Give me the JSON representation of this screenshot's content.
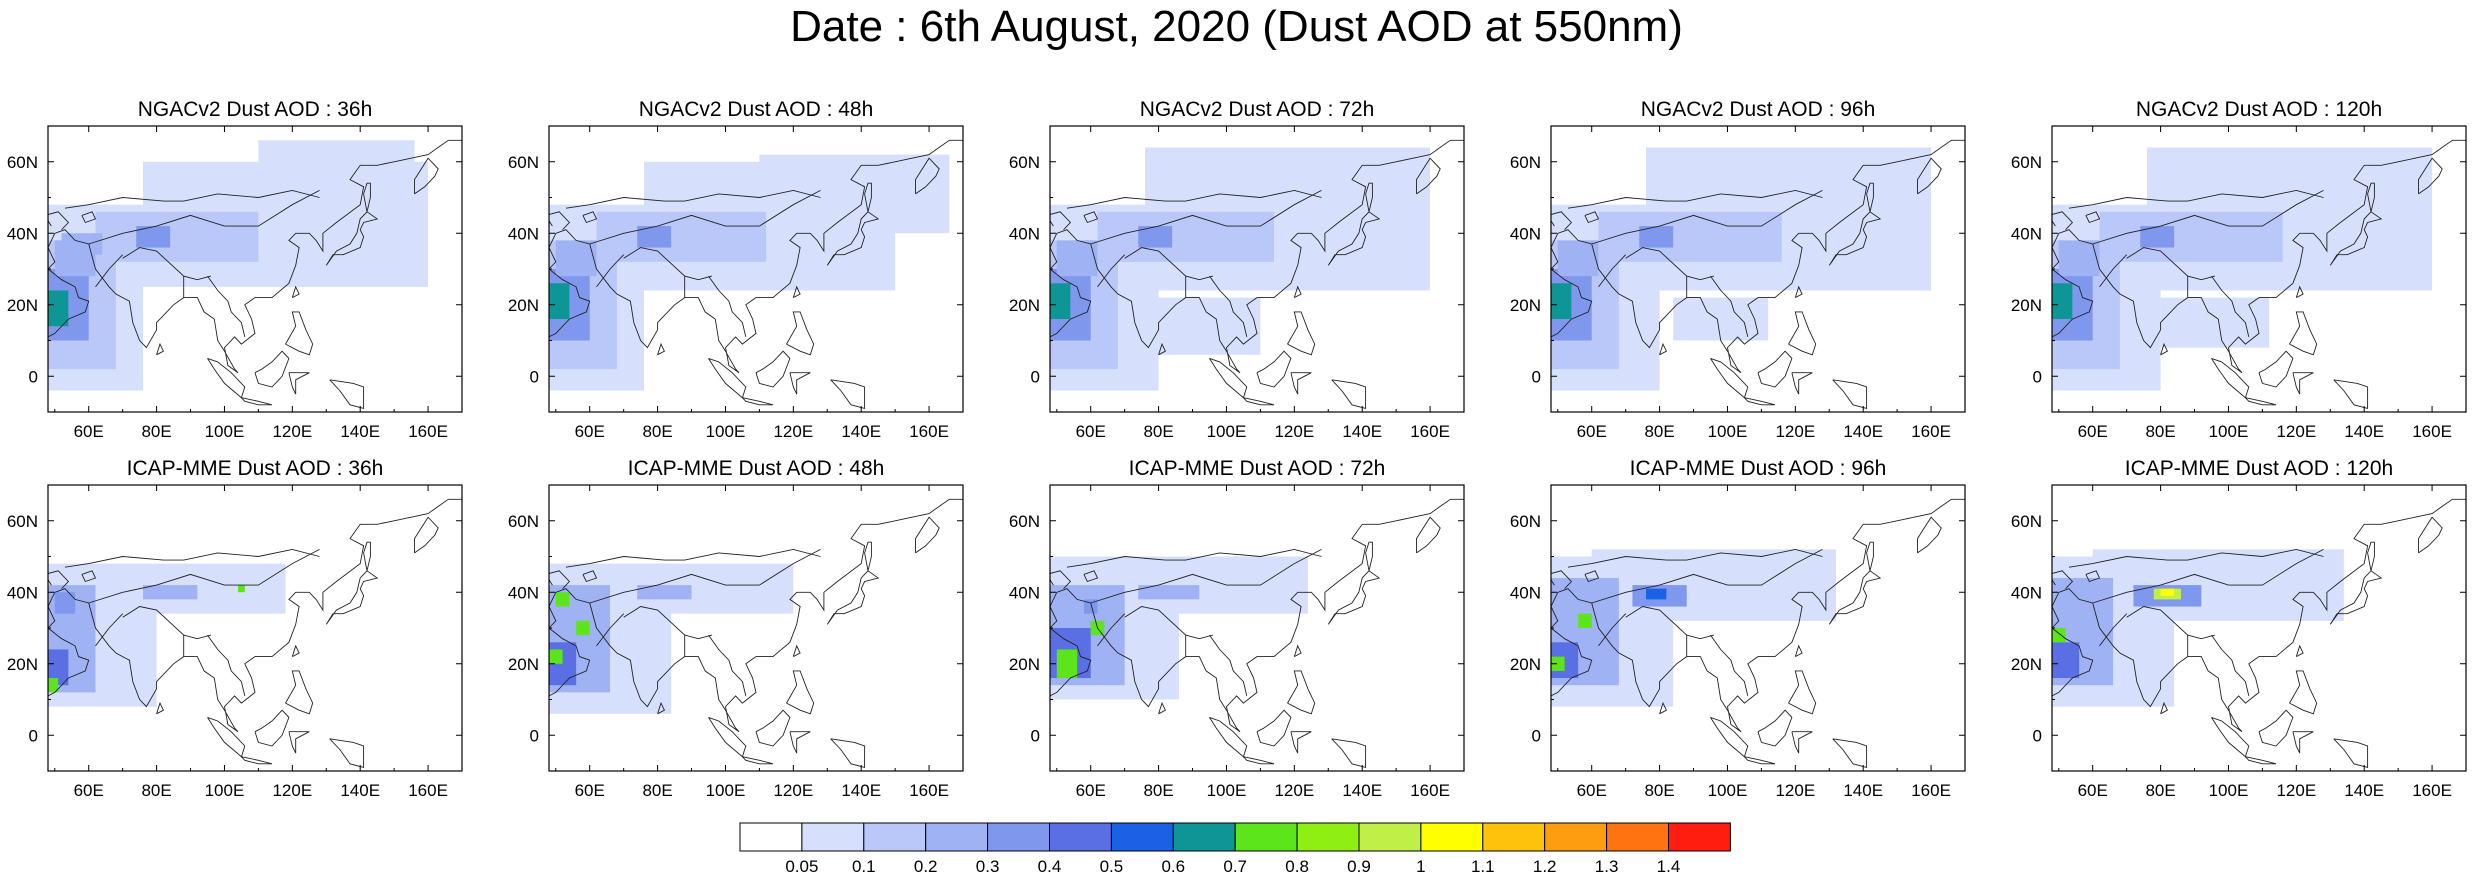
{
  "figure": {
    "title": "Date : 6th August, 2020 (Dust AOD at 550nm)"
  },
  "maps": [
    {
      "title": "NGACv2 Dust AOD : 36h",
      "model": "NGACv2",
      "lead": "36h",
      "panel": "ngac-36h"
    },
    {
      "title": "NGACv2 Dust AOD : 48h",
      "model": "NGACv2",
      "lead": "48h",
      "panel": "ngac-48h"
    },
    {
      "title": "NGACv2 Dust AOD : 72h",
      "model": "NGACv2",
      "lead": "72h",
      "panel": "ngac-72h"
    },
    {
      "title": "NGACv2 Dust AOD : 96h",
      "model": "NGACv2",
      "lead": "96h",
      "panel": "ngac-96h"
    },
    {
      "title": "NGACv2 Dust AOD : 120h",
      "model": "NGACv2",
      "lead": "120h",
      "panel": "ngac-120h"
    },
    {
      "title": "ICAP-MME Dust AOD : 36h",
      "model": "ICAP-MME",
      "lead": "36h",
      "panel": "icap-36h"
    },
    {
      "title": "ICAP-MME Dust AOD : 48h",
      "model": "ICAP-MME",
      "lead": "48h",
      "panel": "icap-48h"
    },
    {
      "title": "ICAP-MME Dust AOD : 72h",
      "model": "ICAP-MME",
      "lead": "72h",
      "panel": "icap-72h"
    },
    {
      "title": "ICAP-MME Dust AOD : 96h",
      "model": "ICAP-MME",
      "lead": "96h",
      "panel": "icap-96h"
    },
    {
      "title": "ICAP-MME Dust AOD : 120h",
      "model": "ICAP-MME",
      "lead": "120h",
      "panel": "icap-120h"
    }
  ],
  "axes": {
    "lon_range": [
      48,
      170
    ],
    "lat_range": [
      -10,
      70
    ],
    "lon_ticks": [
      {
        "value": 60,
        "label": "60E"
      },
      {
        "value": 80,
        "label": "80E"
      },
      {
        "value": 100,
        "label": "100E"
      },
      {
        "value": 120,
        "label": "120E"
      },
      {
        "value": 140,
        "label": "140E"
      },
      {
        "value": 160,
        "label": "160E"
      }
    ],
    "lat_ticks": [
      {
        "value": 0,
        "label": "0"
      },
      {
        "value": 20,
        "label": "20N"
      },
      {
        "value": 40,
        "label": "40N"
      },
      {
        "value": 60,
        "label": "60N"
      }
    ]
  },
  "colorbar": {
    "colors": [
      "#ffffff",
      "#d6e0fc",
      "#b9c8f8",
      "#9fb2f4",
      "#7f98ee",
      "#5a6fe3",
      "#1a61e6",
      "#0e9596",
      "#5ce51a",
      "#8fef12",
      "#c0f048",
      "#ffff00",
      "#ffc20a",
      "#ff9d10",
      "#ff7410",
      "#ff1d10"
    ],
    "labels": [
      "0.05",
      "0.1",
      "0.2",
      "0.3",
      "0.4",
      "0.5",
      "0.6",
      "0.7",
      "0.8",
      "0.9",
      "1",
      "1.1",
      "1.2",
      "1.3",
      "1.4"
    ]
  },
  "dust_fields": {
    "ngac-36h": [
      {
        "lon": [
          48,
          76
        ],
        "lat": [
          -4,
          48
        ],
        "level": 1
      },
      {
        "lon": [
          76,
          160
        ],
        "lat": [
          25,
          60
        ],
        "level": 1
      },
      {
        "lon": [
          110,
          156
        ],
        "lat": [
          45,
          66
        ],
        "level": 1
      },
      {
        "lon": [
          48,
          68
        ],
        "lat": [
          2,
          38
        ],
        "level": 2
      },
      {
        "lon": [
          48,
          60
        ],
        "lat": [
          10,
          30
        ],
        "level": 4
      },
      {
        "lon": [
          48,
          54
        ],
        "lat": [
          14,
          24
        ],
        "level": 7
      },
      {
        "lon": [
          50,
          62
        ],
        "lat": [
          28,
          38
        ],
        "level": 3
      },
      {
        "lon": [
          62,
          110
        ],
        "lat": [
          32,
          46
        ],
        "level": 2
      },
      {
        "lon": [
          74,
          84
        ],
        "lat": [
          36,
          42
        ],
        "level": 4
      },
      {
        "lon": [
          52,
          64
        ],
        "lat": [
          34,
          40
        ],
        "level": 3
      }
    ],
    "ngac-48h": [
      {
        "lon": [
          48,
          76
        ],
        "lat": [
          -4,
          48
        ],
        "level": 1
      },
      {
        "lon": [
          76,
          150
        ],
        "lat": [
          24,
          60
        ],
        "level": 1
      },
      {
        "lon": [
          110,
          166
        ],
        "lat": [
          40,
          62
        ],
        "level": 1
      },
      {
        "lon": [
          48,
          68
        ],
        "lat": [
          2,
          38
        ],
        "level": 2
      },
      {
        "lon": [
          48,
          60
        ],
        "lat": [
          10,
          30
        ],
        "level": 4
      },
      {
        "lon": [
          48,
          54
        ],
        "lat": [
          16,
          26
        ],
        "level": 7
      },
      {
        "lon": [
          50,
          62
        ],
        "lat": [
          28,
          38
        ],
        "level": 3
      },
      {
        "lon": [
          62,
          112
        ],
        "lat": [
          32,
          46
        ],
        "level": 2
      },
      {
        "lon": [
          74,
          84
        ],
        "lat": [
          36,
          42
        ],
        "level": 4
      }
    ],
    "ngac-72h": [
      {
        "lon": [
          48,
          80
        ],
        "lat": [
          -4,
          48
        ],
        "level": 1
      },
      {
        "lon": [
          76,
          160
        ],
        "lat": [
          24,
          64
        ],
        "level": 1
      },
      {
        "lon": [
          80,
          110
        ],
        "lat": [
          6,
          22
        ],
        "level": 1
      },
      {
        "lon": [
          48,
          68
        ],
        "lat": [
          2,
          38
        ],
        "level": 2
      },
      {
        "lon": [
          48,
          60
        ],
        "lat": [
          10,
          30
        ],
        "level": 4
      },
      {
        "lon": [
          48,
          54
        ],
        "lat": [
          16,
          26
        ],
        "level": 7
      },
      {
        "lon": [
          50,
          62
        ],
        "lat": [
          28,
          38
        ],
        "level": 3
      },
      {
        "lon": [
          62,
          114
        ],
        "lat": [
          32,
          46
        ],
        "level": 2
      },
      {
        "lon": [
          74,
          84
        ],
        "lat": [
          36,
          42
        ],
        "level": 4
      }
    ],
    "ngac-96h": [
      {
        "lon": [
          48,
          80
        ],
        "lat": [
          -4,
          48
        ],
        "level": 1
      },
      {
        "lon": [
          76,
          160
        ],
        "lat": [
          24,
          64
        ],
        "level": 1
      },
      {
        "lon": [
          84,
          112
        ],
        "lat": [
          10,
          22
        ],
        "level": 1
      },
      {
        "lon": [
          48,
          68
        ],
        "lat": [
          2,
          38
        ],
        "level": 2
      },
      {
        "lon": [
          48,
          60
        ],
        "lat": [
          10,
          30
        ],
        "level": 4
      },
      {
        "lon": [
          48,
          54
        ],
        "lat": [
          16,
          26
        ],
        "level": 7
      },
      {
        "lon": [
          50,
          62
        ],
        "lat": [
          28,
          38
        ],
        "level": 3
      },
      {
        "lon": [
          62,
          116
        ],
        "lat": [
          32,
          46
        ],
        "level": 2
      },
      {
        "lon": [
          74,
          84
        ],
        "lat": [
          36,
          42
        ],
        "level": 4
      }
    ],
    "ngac-120h": [
      {
        "lon": [
          48,
          80
        ],
        "lat": [
          -4,
          48
        ],
        "level": 1
      },
      {
        "lon": [
          76,
          160
        ],
        "lat": [
          24,
          64
        ],
        "level": 1
      },
      {
        "lon": [
          80,
          112
        ],
        "lat": [
          8,
          22
        ],
        "level": 1
      },
      {
        "lon": [
          48,
          68
        ],
        "lat": [
          2,
          38
        ],
        "level": 2
      },
      {
        "lon": [
          48,
          60
        ],
        "lat": [
          10,
          30
        ],
        "level": 4
      },
      {
        "lon": [
          48,
          54
        ],
        "lat": [
          16,
          26
        ],
        "level": 7
      },
      {
        "lon": [
          50,
          62
        ],
        "lat": [
          28,
          38
        ],
        "level": 3
      },
      {
        "lon": [
          62,
          116
        ],
        "lat": [
          32,
          46
        ],
        "level": 2
      },
      {
        "lon": [
          74,
          84
        ],
        "lat": [
          36,
          42
        ],
        "level": 4
      }
    ],
    "icap-36h": [
      {
        "lon": [
          48,
          80
        ],
        "lat": [
          8,
          48
        ],
        "level": 1
      },
      {
        "lon": [
          64,
          118
        ],
        "lat": [
          34,
          48
        ],
        "level": 1
      },
      {
        "lon": [
          48,
          62
        ],
        "lat": [
          12,
          42
        ],
        "level": 3
      },
      {
        "lon": [
          48,
          54
        ],
        "lat": [
          14,
          24
        ],
        "level": 5
      },
      {
        "lon": [
          48,
          51
        ],
        "lat": [
          12,
          16
        ],
        "level": 8
      },
      {
        "lon": [
          50,
          56
        ],
        "lat": [
          34,
          40
        ],
        "level": 4
      },
      {
        "lon": [
          76,
          92
        ],
        "lat": [
          38,
          42
        ],
        "level": 3
      },
      {
        "lon": [
          104,
          106
        ],
        "lat": [
          40,
          42
        ],
        "level": 8
      }
    ],
    "icap-48h": [
      {
        "lon": [
          48,
          84
        ],
        "lat": [
          6,
          48
        ],
        "level": 1
      },
      {
        "lon": [
          64,
          120
        ],
        "lat": [
          34,
          48
        ],
        "level": 1
      },
      {
        "lon": [
          48,
          66
        ],
        "lat": [
          12,
          42
        ],
        "level": 3
      },
      {
        "lon": [
          48,
          56
        ],
        "lat": [
          14,
          26
        ],
        "level": 5
      },
      {
        "lon": [
          48,
          52
        ],
        "lat": [
          20,
          24
        ],
        "level": 8
      },
      {
        "lon": [
          50,
          54
        ],
        "lat": [
          36,
          40
        ],
        "level": 8
      },
      {
        "lon": [
          56,
          60
        ],
        "lat": [
          28,
          32
        ],
        "level": 8
      },
      {
        "lon": [
          74,
          90
        ],
        "lat": [
          38,
          42
        ],
        "level": 3
      }
    ],
    "icap-72h": [
      {
        "lon": [
          48,
          86
        ],
        "lat": [
          10,
          50
        ],
        "level": 1
      },
      {
        "lon": [
          64,
          124
        ],
        "lat": [
          34,
          50
        ],
        "level": 1
      },
      {
        "lon": [
          48,
          70
        ],
        "lat": [
          14,
          42
        ],
        "level": 3
      },
      {
        "lon": [
          48,
          60
        ],
        "lat": [
          16,
          30
        ],
        "level": 5
      },
      {
        "lon": [
          50,
          56
        ],
        "lat": [
          16,
          24
        ],
        "level": 8
      },
      {
        "lon": [
          60,
          64
        ],
        "lat": [
          28,
          32
        ],
        "level": 8
      },
      {
        "lon": [
          58,
          62
        ],
        "lat": [
          34,
          38
        ],
        "level": 4
      },
      {
        "lon": [
          74,
          92
        ],
        "lat": [
          38,
          42
        ],
        "level": 3
      }
    ],
    "icap-96h": [
      {
        "lon": [
          48,
          84
        ],
        "lat": [
          8,
          50
        ],
        "level": 1
      },
      {
        "lon": [
          60,
          132
        ],
        "lat": [
          32,
          52
        ],
        "level": 1
      },
      {
        "lon": [
          48,
          68
        ],
        "lat": [
          14,
          44
        ],
        "level": 3
      },
      {
        "lon": [
          48,
          56
        ],
        "lat": [
          16,
          26
        ],
        "level": 5
      },
      {
        "lon": [
          48,
          52
        ],
        "lat": [
          18,
          22
        ],
        "level": 8
      },
      {
        "lon": [
          56,
          60
        ],
        "lat": [
          30,
          34
        ],
        "level": 8
      },
      {
        "lon": [
          72,
          88
        ],
        "lat": [
          36,
          42
        ],
        "level": 4
      },
      {
        "lon": [
          76,
          82
        ],
        "lat": [
          38,
          41
        ],
        "level": 6
      }
    ],
    "icap-120h": [
      {
        "lon": [
          48,
          84
        ],
        "lat": [
          8,
          50
        ],
        "level": 1
      },
      {
        "lon": [
          60,
          134
        ],
        "lat": [
          32,
          52
        ],
        "level": 1
      },
      {
        "lon": [
          48,
          66
        ],
        "lat": [
          14,
          44
        ],
        "level": 3
      },
      {
        "lon": [
          48,
          56
        ],
        "lat": [
          16,
          26
        ],
        "level": 5
      },
      {
        "lon": [
          48,
          52
        ],
        "lat": [
          26,
          30
        ],
        "level": 8
      },
      {
        "lon": [
          72,
          92
        ],
        "lat": [
          36,
          42
        ],
        "level": 4
      },
      {
        "lon": [
          78,
          86
        ],
        "lat": [
          38,
          41
        ],
        "level": 10
      },
      {
        "lon": [
          80,
          84
        ],
        "lat": [
          39,
          41
        ],
        "level": 11
      }
    ]
  }
}
